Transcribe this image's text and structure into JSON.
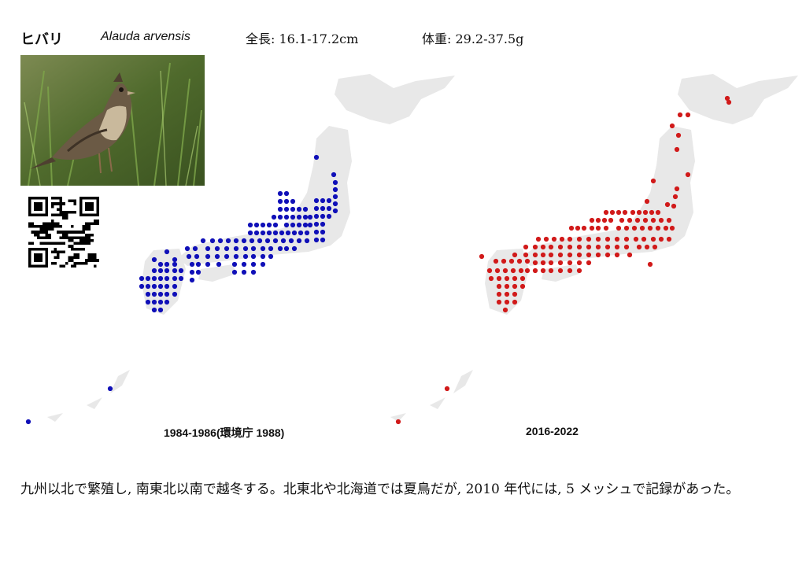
{
  "species": {
    "japanese_name": "ヒバリ",
    "scientific_name": "Alauda arvensis",
    "length": "全長: 16.1-17.2cm",
    "weight": "体重: 29.2-37.5g"
  },
  "maps": [
    {
      "caption": "1984-1986(環境庁 1988)",
      "color": "#1010b8"
    },
    {
      "caption": "2016-2022",
      "color": "#d11a1a"
    }
  ],
  "description": "九州以北で繁殖し, 南東北以南で越冬する。北東北や北海道では夏鳥だが, 2010 年代には, 5 メッシュで記録があった。",
  "colors": {
    "land": "#e8e8e8",
    "text": "#111111"
  }
}
